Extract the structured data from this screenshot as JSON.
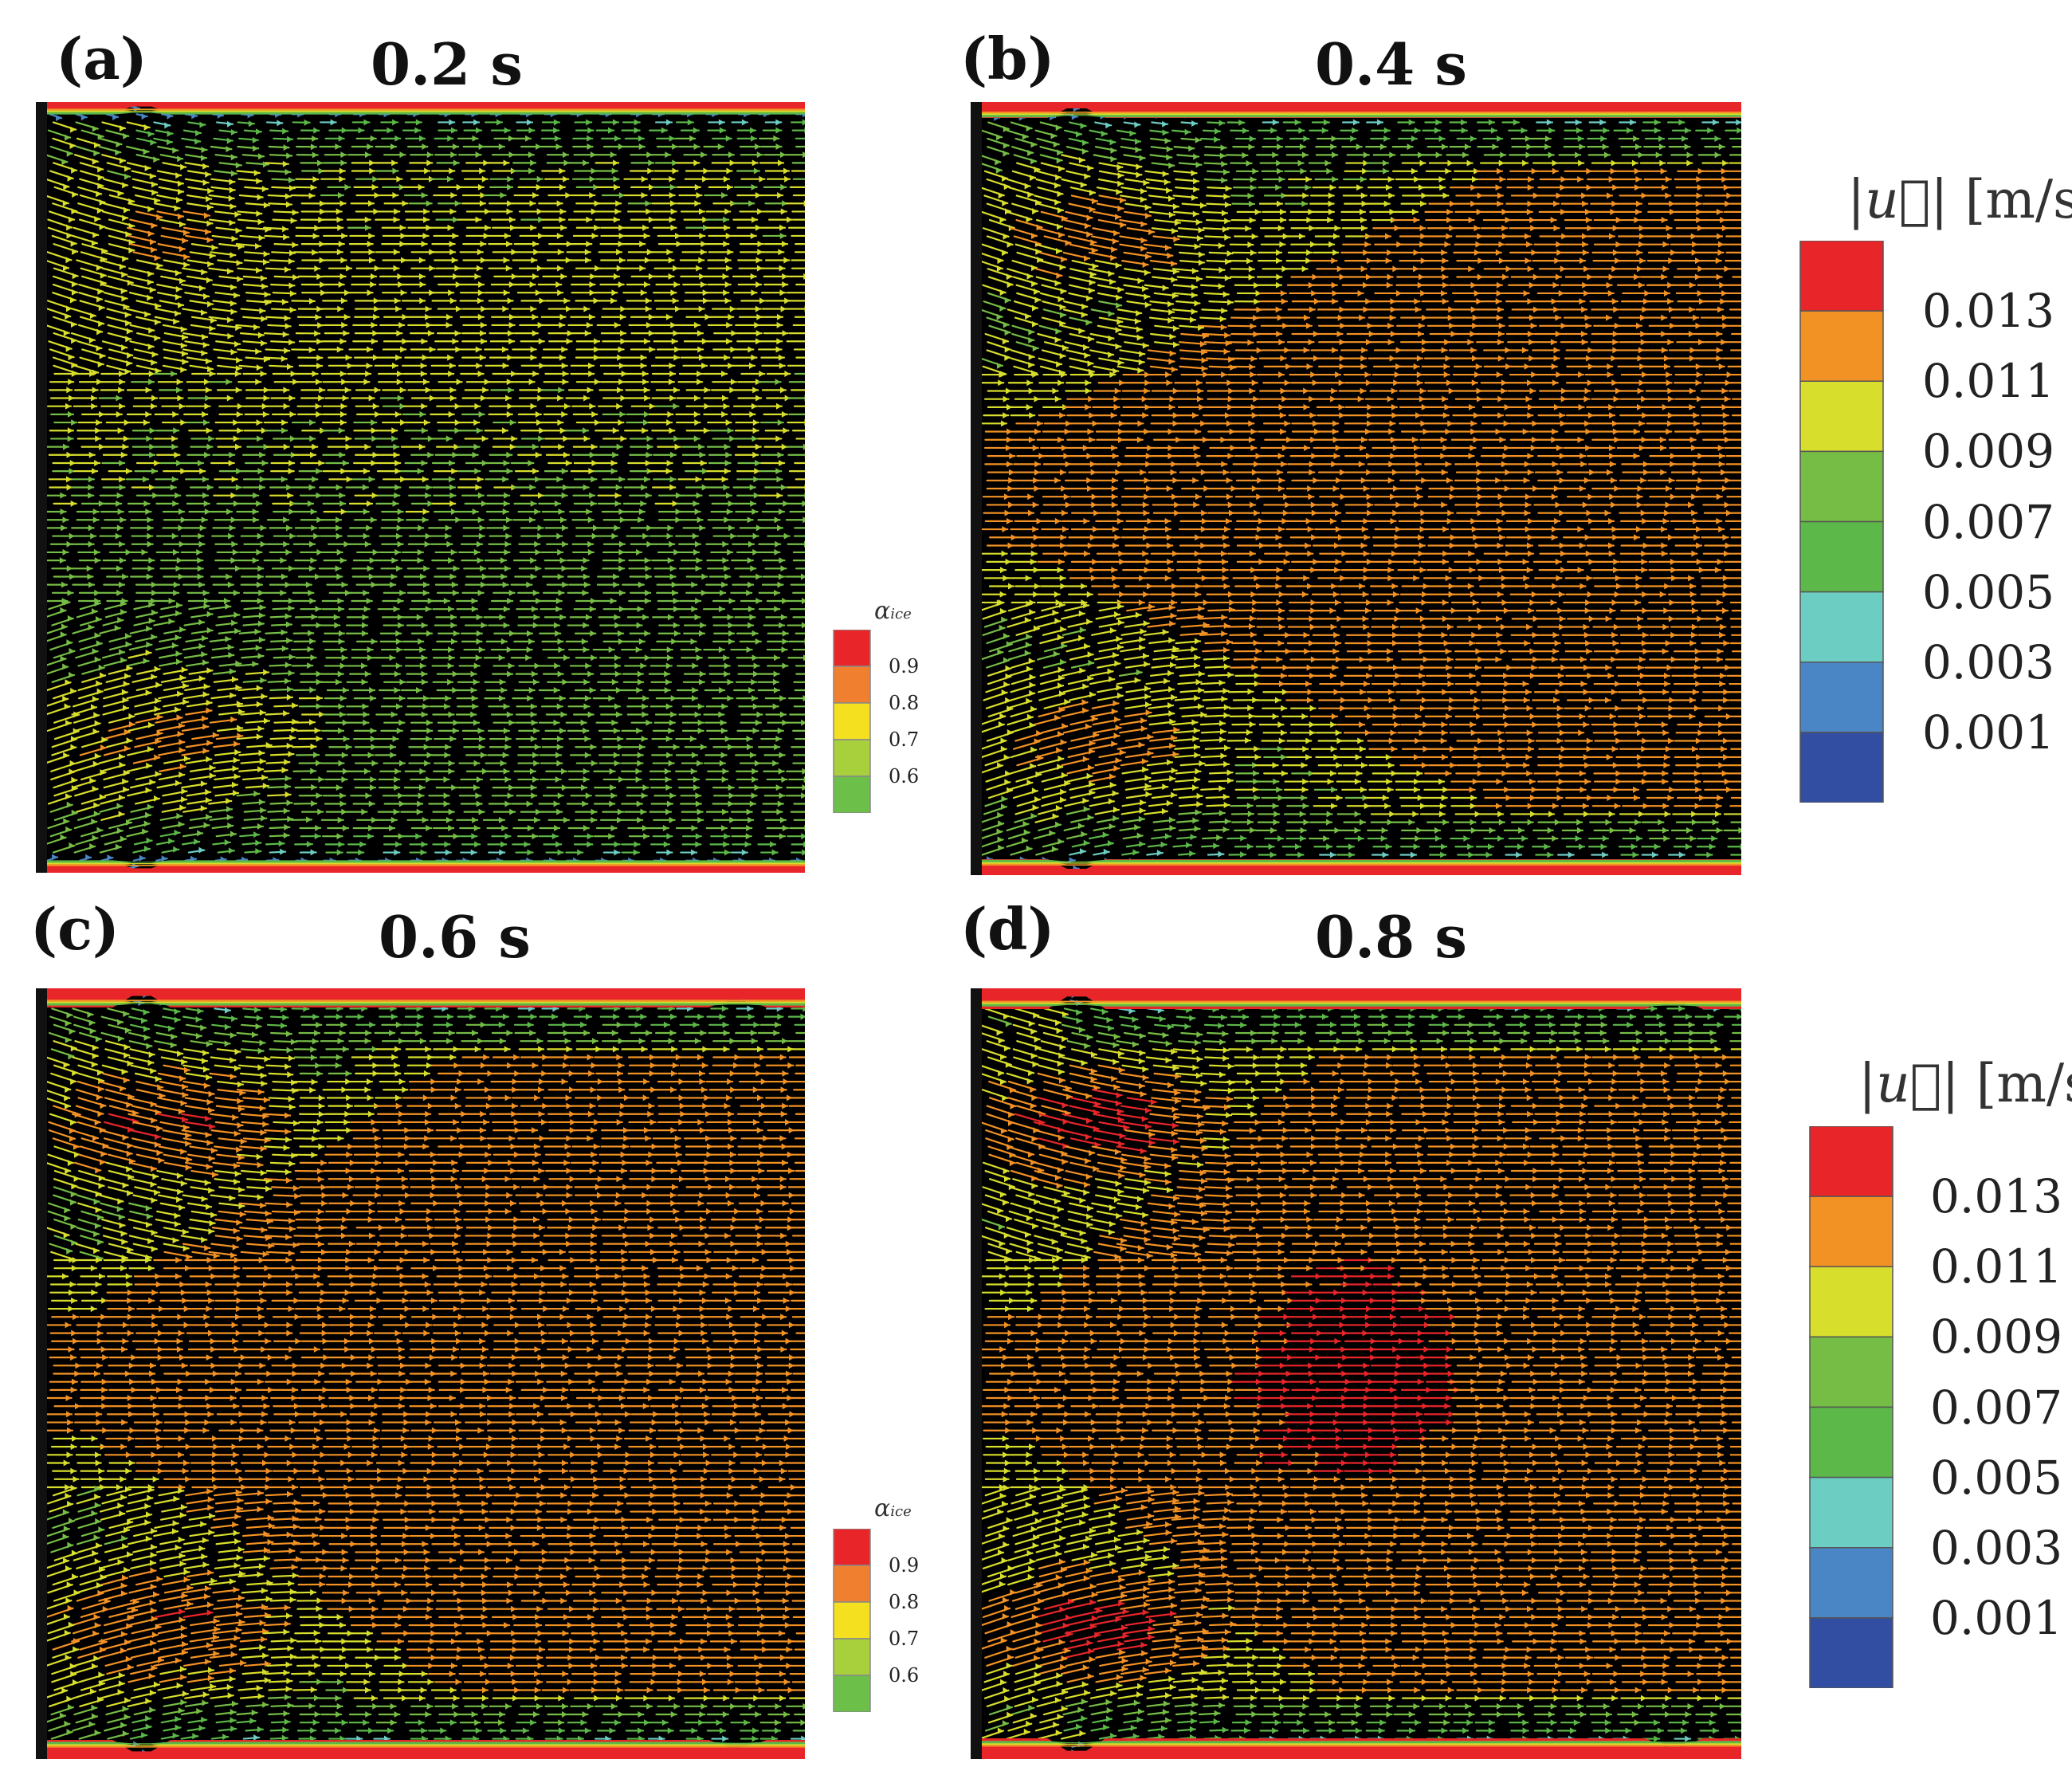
{
  "panels": [
    {
      "letter": "(a)",
      "time": "0.2 s",
      "stage": 0
    },
    {
      "letter": "(b)",
      "time": "0.4 s",
      "stage": 1
    },
    {
      "letter": "(c)",
      "time": "0.6 s",
      "stage": 2
    },
    {
      "letter": "(d)",
      "time": "0.8 s",
      "stage": 3
    }
  ],
  "velocity_legend": {
    "title_sym": "|u⃗|",
    "title_unit": "[m/s]",
    "labels": [
      "0.013",
      "0.011",
      "0.009",
      "0.007",
      "0.005",
      "0.003",
      "0.001"
    ],
    "colors": [
      "#e8262a",
      "#f39224",
      "#d8de2c",
      "#76bd45",
      "#5cb848",
      "#6ccdc3",
      "#4a86c6",
      "#324ea2"
    ]
  },
  "ice_legend": {
    "title_sym": "α",
    "title_sub": "ice",
    "labels": [
      "0.9",
      "0.8",
      "0.7",
      "0.6"
    ],
    "colors": [
      "#e8262a",
      "#f08030",
      "#f5e020",
      "#a8cf3c",
      "#6cc04a"
    ]
  }
}
